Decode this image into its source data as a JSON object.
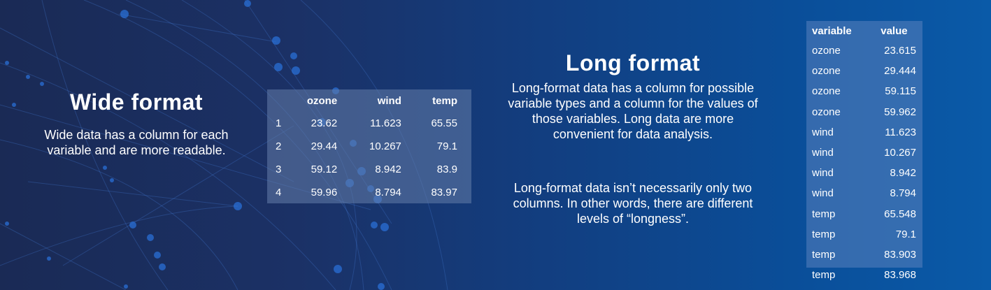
{
  "wide": {
    "title": "Wide format",
    "description": "Wide data has a column for each variable and are more readable.",
    "table": {
      "headers": [
        "",
        "ozone",
        "wind",
        "temp"
      ],
      "rows": [
        [
          "1",
          "23.62",
          "11.623",
          "65.55"
        ],
        [
          "2",
          "29.44",
          "10.267",
          "79.1"
        ],
        [
          "3",
          "59.12",
          "8.942",
          "83.9"
        ],
        [
          "4",
          "59.96",
          "8.794",
          "83.97"
        ]
      ]
    }
  },
  "long": {
    "title": "Long format",
    "description1": "Long-format data has a column for possible variable types and a column for the values of those variables. Long data are more convenient for data analysis.",
    "description2": "Long-format data isn’t necessarily only two columns. In other words, there are different levels of “longness”.",
    "table": {
      "headers": [
        "variable",
        "value"
      ],
      "rows": [
        [
          "ozone",
          "23.615"
        ],
        [
          "ozone",
          "29.444"
        ],
        [
          "ozone",
          "59.115"
        ],
        [
          "ozone",
          "59.962"
        ],
        [
          "wind",
          "11.623"
        ],
        [
          "wind",
          "10.267"
        ],
        [
          "wind",
          "8.942"
        ],
        [
          "wind",
          "8.794"
        ],
        [
          "temp",
          "65.548"
        ],
        [
          "temp",
          "79.1"
        ],
        [
          "temp",
          "83.903"
        ],
        [
          "temp",
          "83.968"
        ]
      ]
    }
  },
  "colors": {
    "background_left": "#1a2a55",
    "background_right": "#0a5aa8",
    "network_node": "#2a6fd6",
    "table_fill": "#6a86b8"
  }
}
